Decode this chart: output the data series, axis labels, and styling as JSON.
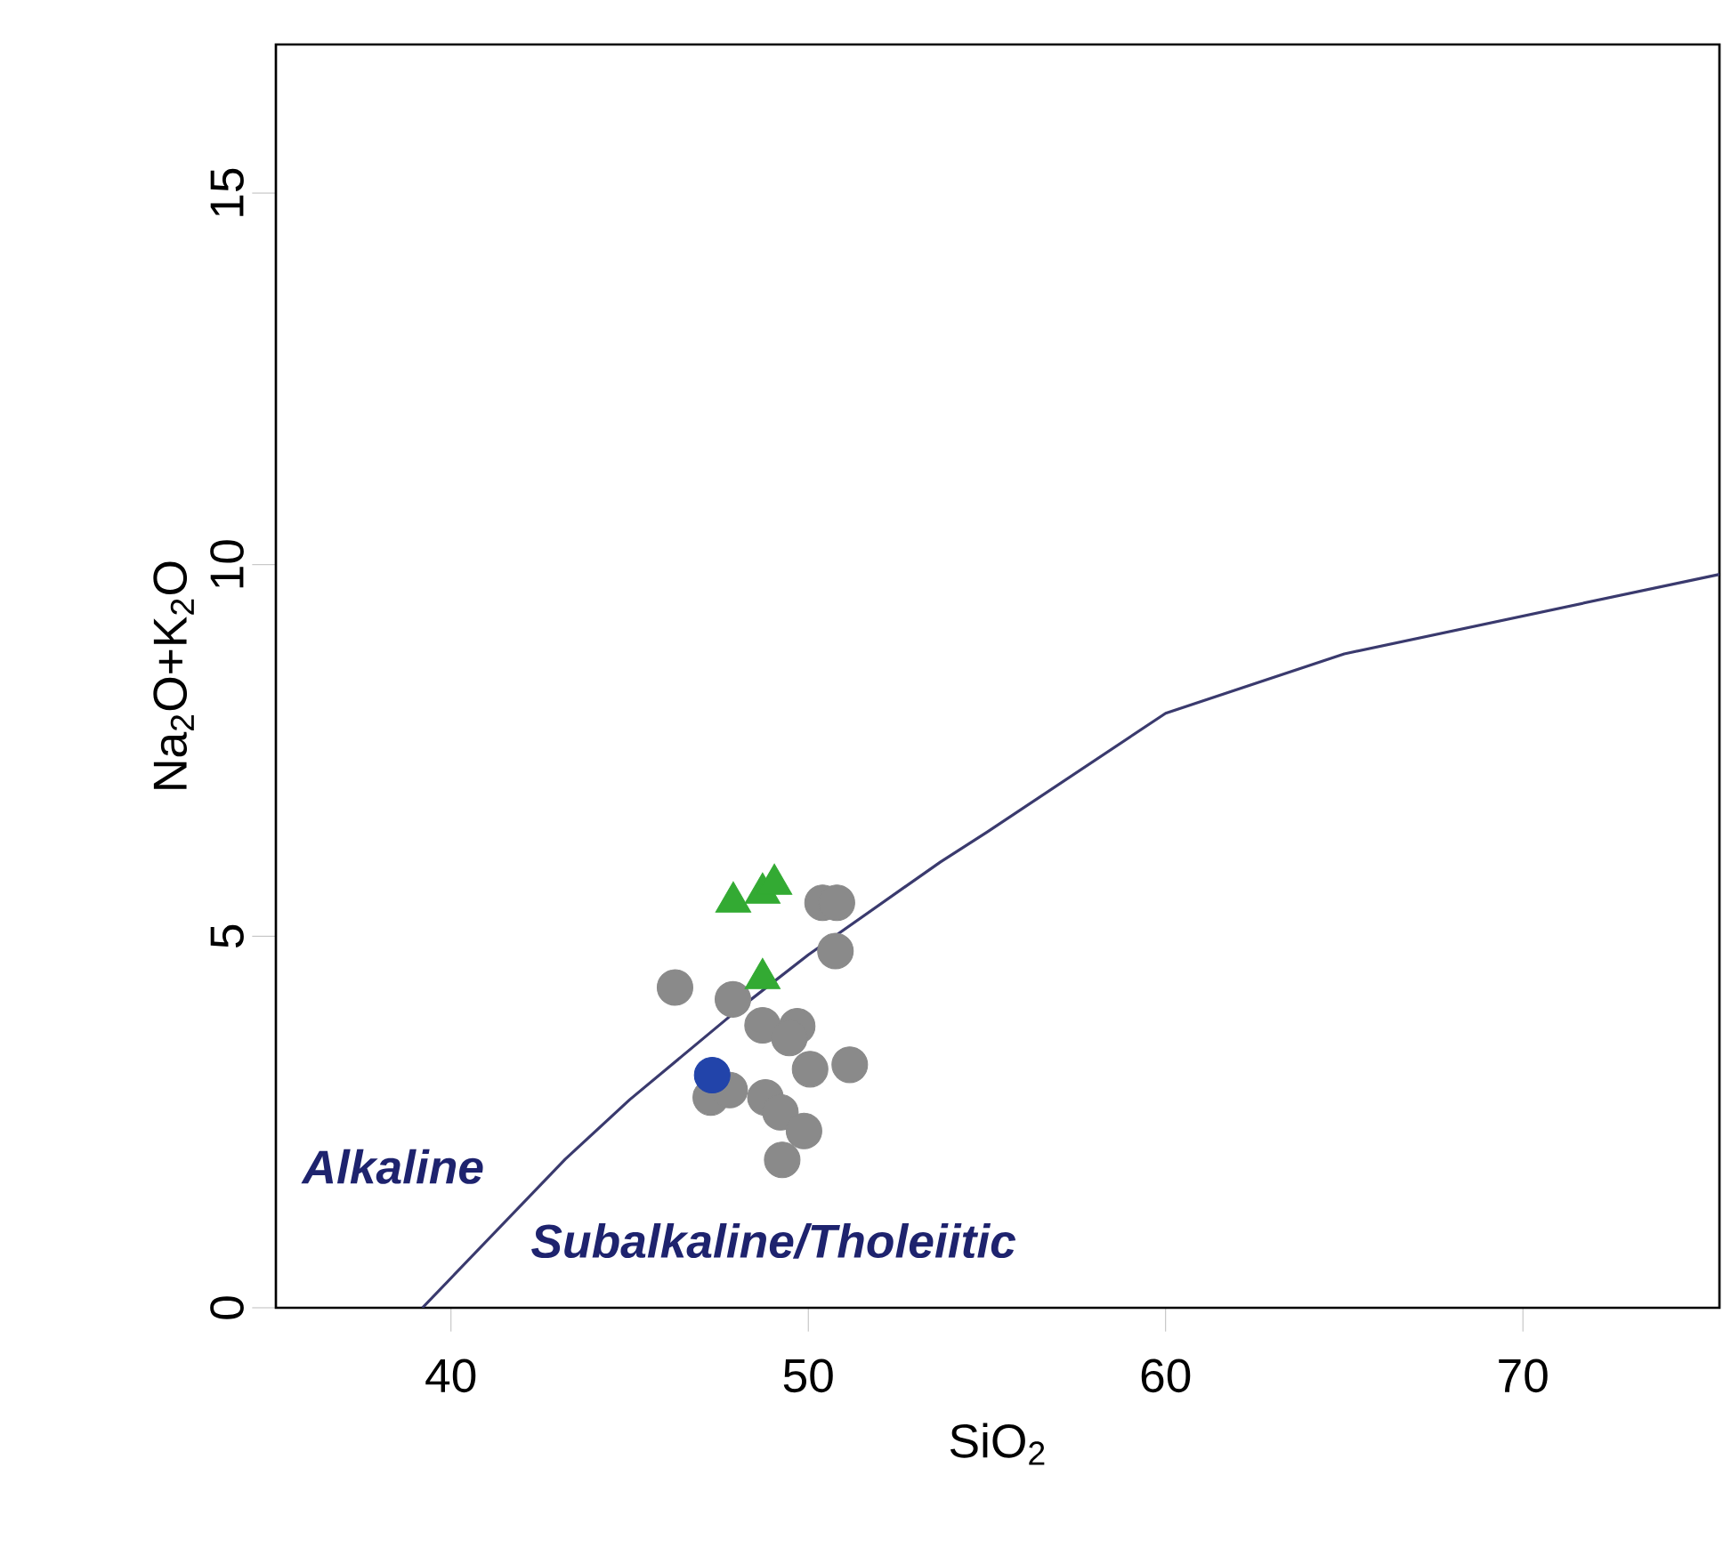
{
  "chart_data": {
    "type": "scatter",
    "xlabel": "SiO$_{2}$",
    "ylabel": "Na$_{2}$O+K$_{2}$O",
    "xlim": [
      35.1,
      75.5
    ],
    "ylim": [
      0,
      17
    ],
    "xticks": [
      40,
      50,
      60,
      70
    ],
    "yticks": [
      0,
      5,
      10,
      15
    ],
    "annotations": [
      "Alkaline",
      "Subalkaline/Tholeiitic"
    ],
    "series": [
      {
        "type": "line",
        "color": "#3a3a6e",
        "marker": "none",
        "line_style": "solid",
        "x": [
          39.2,
          43.2,
          45,
          48,
          50,
          53.7,
          55,
          60,
          65,
          75.5
        ],
        "values": [
          0,
          2,
          2.8,
          4,
          4.75,
          6,
          6.4,
          8,
          8.8,
          9.87
        ]
      },
      {
        "color": "#8a8a8a",
        "marker": "circle",
        "x": [
          50.4,
          50.8,
          50.76,
          46.27,
          47.89,
          48.72,
          49.69,
          49.47,
          50.05,
          51.16,
          47.27,
          47.8,
          48.8,
          49.22,
          49.88,
          49.27
        ],
        "values": [
          5.45,
          5.45,
          4.8,
          4.31,
          4.15,
          3.8,
          3.79,
          3.63,
          3.21,
          3.27,
          2.83,
          2.93,
          2.83,
          2.63,
          2.38,
          1.99
        ]
      },
      {
        "color": "#2244aa",
        "marker": "circle",
        "x": [
          47.31
        ],
        "values": [
          3.13
        ]
      },
      {
        "color": "#33aa33",
        "marker": "triangle",
        "x": [
          47.9,
          48.72,
          49.05,
          48.72
        ],
        "values": [
          5.46,
          5.58,
          5.7,
          4.43
        ]
      }
    ]
  }
}
